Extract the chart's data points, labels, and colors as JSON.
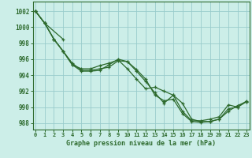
{
  "title": "Graphe pression niveau de la mer (hPa)",
  "ylabel_ticks": [
    988,
    990,
    992,
    994,
    996,
    998,
    1000,
    1002
  ],
  "xlim": [
    -0.3,
    23.3
  ],
  "ylim": [
    987.2,
    1003.2
  ],
  "bg_color": "#cceee8",
  "grid_color": "#99cccc",
  "line_color": "#2d6a2d",
  "marker": "+",
  "series": [
    [
      1002.0,
      1000.5,
      null,
      998.5,
      null,
      null,
      null,
      null,
      null,
      null,
      null,
      null,
      null,
      null,
      null,
      null,
      null,
      null,
      null,
      null,
      null,
      null,
      null,
      null
    ],
    [
      1002.0,
      1000.5,
      998.5,
      997.0,
      995.3,
      994.8,
      994.8,
      995.2,
      995.5,
      995.9,
      994.8,
      993.5,
      992.3,
      992.5,
      992.0,
      991.5,
      990.5,
      988.5,
      988.2,
      988.2,
      988.5,
      989.5,
      990.2,
      990.7
    ],
    [
      1002.0,
      1000.5,
      998.5,
      997.0,
      995.5,
      994.6,
      994.6,
      994.8,
      995.0,
      995.8,
      995.7,
      994.5,
      993.2,
      991.8,
      990.5,
      991.5,
      989.5,
      988.3,
      988.3,
      988.5,
      988.8,
      990.3,
      990.0,
      990.8
    ],
    [
      1002.0,
      1000.5,
      998.5,
      997.0,
      995.3,
      994.5,
      994.5,
      994.6,
      995.3,
      996.0,
      995.7,
      994.7,
      993.5,
      991.5,
      990.8,
      991.0,
      989.2,
      988.2,
      988.1,
      988.2,
      988.5,
      989.8,
      990.0,
      990.7
    ]
  ]
}
